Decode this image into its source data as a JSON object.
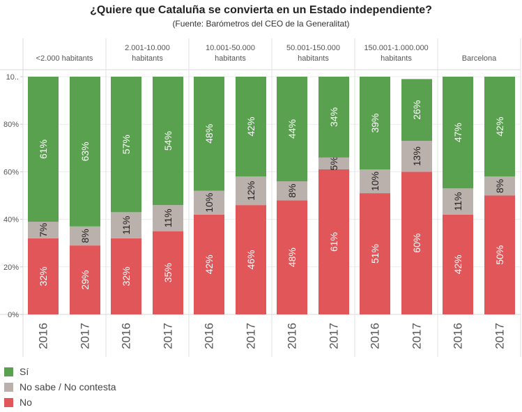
{
  "chart_data": {
    "type": "bar",
    "stacked": true,
    "title": "¿Quiere que Cataluña se convierta en un Estado independiente?",
    "subtitle": "(Fuente: Barómetros del CEO de la Generalitat)",
    "y_ticks": [
      "0%",
      "20%",
      "40%",
      "60%",
      "80%",
      "10.."
    ],
    "ylim": [
      0,
      100
    ],
    "groups": [
      {
        "label": "<2.000 habitants",
        "bars": [
          {
            "year": "2016",
            "no": 32,
            "ns": 7,
            "si": 61
          },
          {
            "year": "2017",
            "no": 29,
            "ns": 8,
            "si": 63
          }
        ]
      },
      {
        "label": "2.001-10.000 habitants",
        "bars": [
          {
            "year": "2016",
            "no": 32,
            "ns": 11,
            "si": 57
          },
          {
            "year": "2017",
            "no": 35,
            "ns": 11,
            "si": 54
          }
        ]
      },
      {
        "label": "10.001-50.000 habitants",
        "bars": [
          {
            "year": "2016",
            "no": 42,
            "ns": 10,
            "si": 48
          },
          {
            "year": "2017",
            "no": 46,
            "ns": 12,
            "si": 42
          }
        ]
      },
      {
        "label": "50.001-150.000 habitants",
        "bars": [
          {
            "year": "2016",
            "no": 48,
            "ns": 8,
            "si": 44
          },
          {
            "year": "2017",
            "no": 61,
            "ns": 5,
            "si": 34
          }
        ]
      },
      {
        "label": "150.001-1.000.000 habitants",
        "bars": [
          {
            "year": "2016",
            "no": 51,
            "ns": 10,
            "si": 39
          },
          {
            "year": "2017",
            "no": 60,
            "ns": 13,
            "si": 26
          }
        ]
      },
      {
        "label": "Barcelona",
        "bars": [
          {
            "year": "2016",
            "no": 42,
            "ns": 11,
            "si": 47
          },
          {
            "year": "2017",
            "no": 50,
            "ns": 8,
            "si": 42
          }
        ]
      }
    ],
    "series": [
      {
        "key": "si",
        "name": "Sí",
        "color": "#59a14f"
      },
      {
        "key": "ns",
        "name": "No sabe / No contesta",
        "color": "#bab0ac"
      },
      {
        "key": "no",
        "name": "No",
        "color": "#e15759"
      }
    ],
    "legend_position": "bottom-left",
    "grid": true
  }
}
